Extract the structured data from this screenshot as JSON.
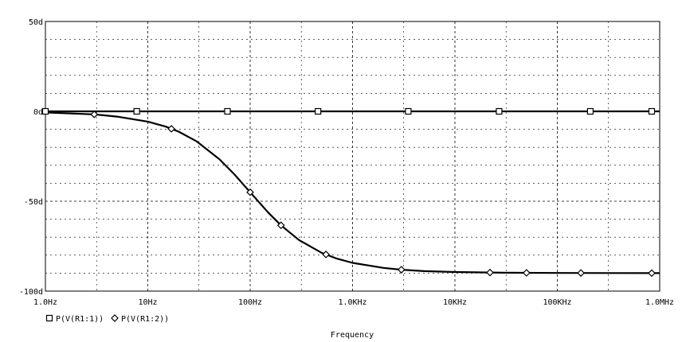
{
  "chart_data": {
    "type": "line",
    "xscale": "log",
    "x_range": [
      1,
      1000000
    ],
    "ylim": [
      -100,
      50
    ],
    "x_ticks": [
      1,
      10,
      100,
      1000,
      10000,
      100000,
      1000000
    ],
    "x_tick_labels": [
      "1.0Hz",
      "10Hz",
      "100Hz",
      "1.0KHz",
      "10KHz",
      "100KHz",
      "1.0MHz"
    ],
    "y_ticks": [
      50,
      0,
      -50,
      -100
    ],
    "y_tick_labels": [
      "50d",
      "0d",
      "-50d",
      "-100d"
    ],
    "xlabel": "Frequency",
    "ylabel": "",
    "grid": true,
    "legend_position": "bottom-left",
    "series": [
      {
        "name": "P(V(R1:1))",
        "marker": "square",
        "x": [
          1,
          1000000
        ],
        "y": [
          0,
          0
        ],
        "marker_x": [
          1,
          7.8,
          60,
          460,
          3500,
          27000,
          210000,
          1600000
        ]
      },
      {
        "name": "P(V(R1:2))",
        "marker": "diamond",
        "x": [
          1,
          3,
          5,
          10,
          15,
          20,
          30,
          50,
          70,
          100,
          150,
          200,
          300,
          500,
          700,
          1000,
          2000,
          3000,
          5000,
          10000,
          30000,
          100000,
          1000000
        ],
        "y": [
          -0.6,
          -1.7,
          -2.9,
          -5.7,
          -8.5,
          -11.3,
          -16.7,
          -26.6,
          -35.0,
          -45.0,
          -56.3,
          -63.4,
          -71.6,
          -78.7,
          -81.9,
          -84.3,
          -87.1,
          -88.1,
          -88.9,
          -89.4,
          -89.8,
          -89.9,
          -90.0
        ],
        "marker_x": [
          3,
          17,
          100,
          200,
          550,
          3000,
          22000,
          50000,
          170000,
          1000000
        ]
      }
    ]
  }
}
